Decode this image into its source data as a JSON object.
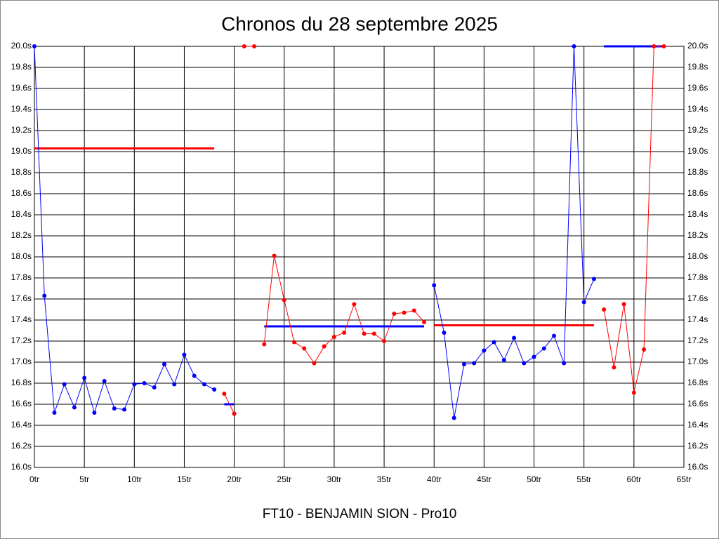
{
  "chart_data": {
    "type": "line",
    "title": "Chronos du 28 septembre 2025",
    "footer": "FT10 - BENJAMIN SION - Pro10",
    "xlim": [
      0,
      65
    ],
    "ylim": [
      16.0,
      20.0
    ],
    "grid": true,
    "xticks": [
      {
        "value": 0,
        "label": "0tr"
      },
      {
        "value": 5,
        "label": "5tr"
      },
      {
        "value": 10,
        "label": "10tr"
      },
      {
        "value": 15,
        "label": "15tr"
      },
      {
        "value": 20,
        "label": "20tr"
      },
      {
        "value": 25,
        "label": "25tr"
      },
      {
        "value": 30,
        "label": "30tr"
      },
      {
        "value": 35,
        "label": "35tr"
      },
      {
        "value": 40,
        "label": "40tr"
      },
      {
        "value": 45,
        "label": "45tr"
      },
      {
        "value": 50,
        "label": "50tr"
      },
      {
        "value": 55,
        "label": "55tr"
      },
      {
        "value": 60,
        "label": "60tr"
      },
      {
        "value": 65,
        "label": "65tr"
      }
    ],
    "yticks": [
      {
        "value": 16.0,
        "label": "16.0s"
      },
      {
        "value": 16.2,
        "label": "16.2s"
      },
      {
        "value": 16.4,
        "label": "16.4s"
      },
      {
        "value": 16.6,
        "label": "16.6s"
      },
      {
        "value": 16.8,
        "label": "16.8s"
      },
      {
        "value": 17.0,
        "label": "17.0s"
      },
      {
        "value": 17.2,
        "label": "17.2s"
      },
      {
        "value": 17.4,
        "label": "17.4s"
      },
      {
        "value": 17.6,
        "label": "17.6s"
      },
      {
        "value": 17.8,
        "label": "17.8s"
      },
      {
        "value": 18.0,
        "label": "18.0s"
      },
      {
        "value": 18.2,
        "label": "18.2s"
      },
      {
        "value": 18.4,
        "label": "18.4s"
      },
      {
        "value": 18.6,
        "label": "18.6s"
      },
      {
        "value": 18.8,
        "label": "18.8s"
      },
      {
        "value": 19.0,
        "label": "19.0s"
      },
      {
        "value": 19.2,
        "label": "19.2s"
      },
      {
        "value": 19.4,
        "label": "19.4s"
      },
      {
        "value": 19.6,
        "label": "19.6s"
      },
      {
        "value": 19.8,
        "label": "19.8s"
      },
      {
        "value": 20.0,
        "label": "20.0s"
      }
    ],
    "series": [
      {
        "color": "#0000ff",
        "x": [
          0,
          1,
          2,
          3,
          4,
          5,
          6,
          7,
          8,
          9,
          10,
          11,
          12,
          13,
          14,
          15,
          16,
          17,
          18
        ],
        "values": [
          20.0,
          17.63,
          16.52,
          16.79,
          16.57,
          16.85,
          16.52,
          16.82,
          16.56,
          16.55,
          16.79,
          16.8,
          16.76,
          16.98,
          16.79,
          17.07,
          16.87,
          16.79,
          16.74
        ]
      },
      {
        "color": "#ff0000",
        "x": [
          19,
          20
        ],
        "values": [
          16.7,
          16.51
        ]
      },
      {
        "color": "#ff0000",
        "x": [
          21,
          22
        ],
        "values": [
          20.0,
          20.0
        ]
      },
      {
        "color": "#ff0000",
        "x": [
          23,
          24,
          25,
          26,
          27,
          28,
          29,
          30,
          31,
          32,
          33,
          34,
          35,
          36,
          37,
          38,
          39
        ],
        "values": [
          17.17,
          18.01,
          17.59,
          17.19,
          17.13,
          16.99,
          17.15,
          17.24,
          17.28,
          17.55,
          17.27,
          17.27,
          17.2,
          17.46,
          17.47,
          17.49,
          17.38
        ]
      },
      {
        "color": "#0000ff",
        "x": [
          40,
          41,
          42,
          43,
          44,
          45,
          46,
          47,
          48,
          49,
          50,
          51,
          52,
          53,
          54,
          55,
          56
        ],
        "values": [
          17.73,
          17.28,
          16.47,
          16.98,
          16.99,
          17.11,
          17.19,
          17.02,
          17.23,
          16.99,
          17.05,
          17.13,
          17.25,
          16.99,
          20.0,
          17.57,
          17.79
        ]
      },
      {
        "color": "#ff0000",
        "x": [
          57,
          58,
          59,
          60,
          61,
          62,
          63
        ],
        "values": [
          17.5,
          16.95,
          17.55,
          16.71,
          17.12,
          20.0,
          20.0
        ]
      }
    ],
    "averages": [
      {
        "color": "#ff0000",
        "x": [
          0,
          18
        ],
        "value": 19.03
      },
      {
        "color": "#0000ff",
        "x": [
          19,
          20
        ],
        "value": 16.6
      },
      {
        "color": "#0000ff",
        "x": [
          23,
          39
        ],
        "value": 17.34
      },
      {
        "color": "#ff0000",
        "x": [
          40,
          56
        ],
        "value": 17.35
      },
      {
        "color": "#0000ff",
        "x": [
          57,
          63
        ],
        "value": 20.0
      }
    ]
  }
}
